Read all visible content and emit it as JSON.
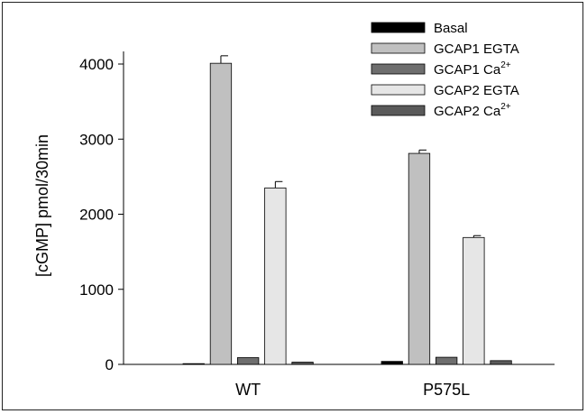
{
  "chart_data": {
    "type": "bar",
    "ylabel": "[cGMP] pmol/30min",
    "ylim": [
      0,
      4000
    ],
    "yticks": [
      "0",
      "1000",
      "2000",
      "3000",
      "4000"
    ],
    "categories": [
      "WT",
      "P575L"
    ],
    "series": [
      {
        "name": "Basal",
        "name_sup": "",
        "color": "#000000",
        "values": [
          10,
          40
        ],
        "errors": [
          0,
          0
        ]
      },
      {
        "name": "GCAP1 EGTA",
        "name_sup": "",
        "color": "#c0c0c0",
        "values": [
          4010,
          2810
        ],
        "errors": [
          100,
          45
        ]
      },
      {
        "name": "GCAP1 Ca",
        "name_sup": "2+",
        "color": "#6e6e6e",
        "values": [
          90,
          95
        ],
        "errors": [
          0,
          0
        ]
      },
      {
        "name": "GCAP2 EGTA",
        "name_sup": "",
        "color": "#e6e6e6",
        "values": [
          2350,
          1690
        ],
        "errors": [
          85,
          25
        ]
      },
      {
        "name": "GCAP2 Ca",
        "name_sup": "2+",
        "color": "#5a5a5a",
        "values": [
          30,
          50
        ],
        "errors": [
          0,
          0
        ]
      }
    ]
  }
}
